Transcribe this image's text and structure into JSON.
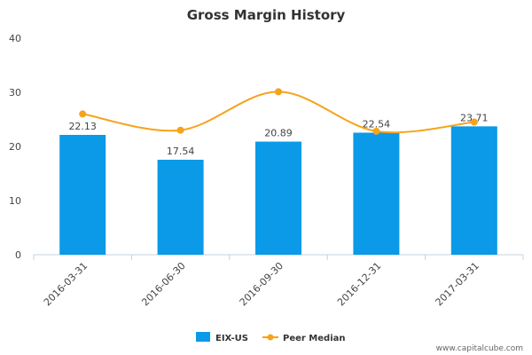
{
  "chart_data": {
    "type": "bar",
    "title": "Gross Margin History",
    "categories": [
      "2016-03-31",
      "2016-06-30",
      "2016-09-30",
      "2016-12-31",
      "2017-03-31"
    ],
    "series": [
      {
        "name": "EIX-US",
        "kind": "bar",
        "color": "#0a9ae8",
        "values": [
          22.13,
          17.54,
          20.89,
          22.54,
          23.71
        ],
        "labels": [
          "22.13",
          "17.54",
          "20.89",
          "22.54",
          "23.71"
        ]
      },
      {
        "name": "Peer Median",
        "kind": "line",
        "color": "#f5a31a",
        "values": [
          26.0,
          23.0,
          30.1,
          22.8,
          24.5
        ]
      }
    ],
    "yticks": [
      "0",
      "10",
      "20",
      "30",
      "40"
    ],
    "ylim": [
      0,
      40
    ],
    "xlabel": "",
    "ylabel": "",
    "legend_position": "bottom",
    "grid": false
  },
  "credit": "www.capitalcube.com"
}
